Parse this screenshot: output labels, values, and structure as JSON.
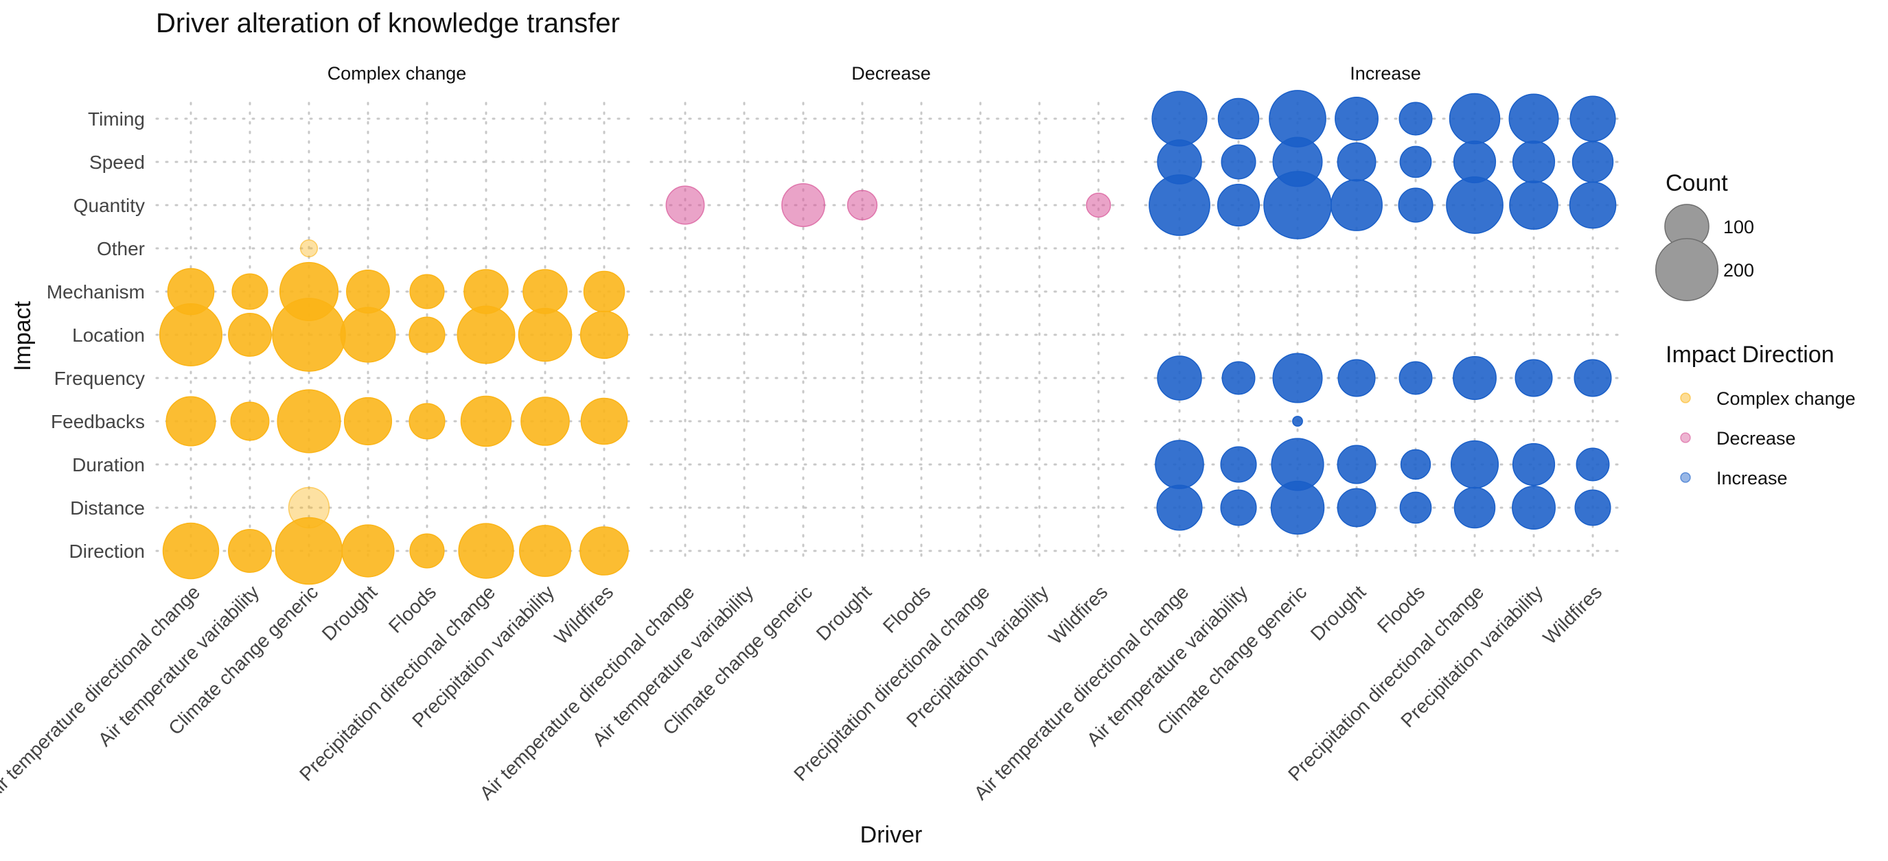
{
  "chart_data": {
    "type": "scatter",
    "title": "Driver alteration of knowledge transfer",
    "xlabel": "Driver",
    "ylabel": "Impact",
    "facets": [
      "Complex change",
      "Decrease",
      "Increase"
    ],
    "drivers": [
      "Air temperature directional change",
      "Air temperature variability",
      "Climate change  generic",
      "Drought",
      "Floods",
      "Precipitation directional change",
      "Precipitation variability",
      "Wildfires"
    ],
    "impacts": [
      "Direction",
      "Distance",
      "Duration",
      "Feedbacks",
      "Frequency",
      "Location",
      "Mechanism",
      "Other",
      "Quantity",
      "Speed",
      "Timing"
    ],
    "colors": {
      "Complex change": "#fbb416",
      "Decrease": "#d8589a",
      "Increase": "#1a5fc8"
    },
    "size_legend": {
      "title": "Count",
      "values": [
        100,
        200
      ]
    },
    "color_legend": {
      "title": "Impact Direction",
      "entries": [
        "Complex change",
        "Decrease",
        "Increase"
      ]
    },
    "grid": true,
    "legend_position": "right",
    "series": [
      {
        "name": "Complex change",
        "points": [
          {
            "driver": "Air temperature directional change",
            "impact": "Mechanism",
            "count": 110
          },
          {
            "driver": "Air temperature directional change",
            "impact": "Location",
            "count": 200
          },
          {
            "driver": "Air temperature directional change",
            "impact": "Feedbacks",
            "count": 125
          },
          {
            "driver": "Air temperature directional change",
            "impact": "Direction",
            "count": 160
          },
          {
            "driver": "Air temperature variability",
            "impact": "Mechanism",
            "count": 65
          },
          {
            "driver": "Air temperature variability",
            "impact": "Location",
            "count": 95
          },
          {
            "driver": "Air temperature variability",
            "impact": "Feedbacks",
            "count": 75
          },
          {
            "driver": "Air temperature variability",
            "impact": "Direction",
            "count": 95
          },
          {
            "driver": "Climate change  generic",
            "impact": "Other",
            "count": 15,
            "faded": true
          },
          {
            "driver": "Climate change  generic",
            "impact": "Mechanism",
            "count": 175
          },
          {
            "driver": "Climate change  generic",
            "impact": "Location",
            "count": 275
          },
          {
            "driver": "Climate change  generic",
            "impact": "Feedbacks",
            "count": 205
          },
          {
            "driver": "Climate change  generic",
            "impact": "Distance",
            "count": 85,
            "faded": true
          },
          {
            "driver": "Climate change  generic",
            "impact": "Direction",
            "count": 230
          },
          {
            "driver": "Drought",
            "impact": "Mechanism",
            "count": 95
          },
          {
            "driver": "Drought",
            "impact": "Location",
            "count": 155
          },
          {
            "driver": "Drought",
            "impact": "Feedbacks",
            "count": 115
          },
          {
            "driver": "Drought",
            "impact": "Direction",
            "count": 140
          },
          {
            "driver": "Floods",
            "impact": "Mechanism",
            "count": 60
          },
          {
            "driver": "Floods",
            "impact": "Location",
            "count": 65
          },
          {
            "driver": "Floods",
            "impact": "Feedbacks",
            "count": 65
          },
          {
            "driver": "Floods",
            "impact": "Direction",
            "count": 60
          },
          {
            "driver": "Precipitation directional change",
            "impact": "Mechanism",
            "count": 100
          },
          {
            "driver": "Precipitation directional change",
            "impact": "Location",
            "count": 170
          },
          {
            "driver": "Precipitation directional change",
            "impact": "Feedbacks",
            "count": 130
          },
          {
            "driver": "Precipitation directional change",
            "impact": "Direction",
            "count": 155
          },
          {
            "driver": "Precipitation variability",
            "impact": "Mechanism",
            "count": 100
          },
          {
            "driver": "Precipitation variability",
            "impact": "Location",
            "count": 145
          },
          {
            "driver": "Precipitation variability",
            "impact": "Feedbacks",
            "count": 120
          },
          {
            "driver": "Precipitation variability",
            "impact": "Direction",
            "count": 135
          },
          {
            "driver": "Wildfires",
            "impact": "Mechanism",
            "count": 85
          },
          {
            "driver": "Wildfires",
            "impact": "Location",
            "count": 115
          },
          {
            "driver": "Wildfires",
            "impact": "Feedbacks",
            "count": 110
          },
          {
            "driver": "Wildfires",
            "impact": "Direction",
            "count": 120
          }
        ]
      },
      {
        "name": "Decrease",
        "points": [
          {
            "driver": "Air temperature directional change",
            "impact": "Quantity",
            "count": 75
          },
          {
            "driver": "Climate change  generic",
            "impact": "Quantity",
            "count": 95
          },
          {
            "driver": "Drought",
            "impact": "Quantity",
            "count": 45
          },
          {
            "driver": "Wildfires",
            "impact": "Quantity",
            "count": 30
          }
        ]
      },
      {
        "name": "Increase",
        "points": [
          {
            "driver": "Air temperature directional change",
            "impact": "Timing",
            "count": 155
          },
          {
            "driver": "Air temperature directional change",
            "impact": "Speed",
            "count": 100
          },
          {
            "driver": "Air temperature directional change",
            "impact": "Quantity",
            "count": 190
          },
          {
            "driver": "Air temperature directional change",
            "impact": "Frequency",
            "count": 100
          },
          {
            "driver": "Air temperature directional change",
            "impact": "Duration",
            "count": 120
          },
          {
            "driver": "Air temperature directional change",
            "impact": "Distance",
            "count": 105
          },
          {
            "driver": "Air temperature variability",
            "impact": "Timing",
            "count": 85
          },
          {
            "driver": "Air temperature variability",
            "impact": "Speed",
            "count": 60
          },
          {
            "driver": "Air temperature variability",
            "impact": "Quantity",
            "count": 90
          },
          {
            "driver": "Air temperature variability",
            "impact": "Frequency",
            "count": 55
          },
          {
            "driver": "Air temperature variability",
            "impact": "Duration",
            "count": 65
          },
          {
            "driver": "Air temperature variability",
            "impact": "Distance",
            "count": 65
          },
          {
            "driver": "Climate change  generic",
            "impact": "Timing",
            "count": 165
          },
          {
            "driver": "Climate change  generic",
            "impact": "Speed",
            "count": 125
          },
          {
            "driver": "Climate change  generic",
            "impact": "Quantity",
            "count": 235
          },
          {
            "driver": "Climate change  generic",
            "impact": "Frequency",
            "count": 125
          },
          {
            "driver": "Climate change  generic",
            "impact": "Feedbacks",
            "count": 5
          },
          {
            "driver": "Climate change  generic",
            "impact": "Duration",
            "count": 140
          },
          {
            "driver": "Climate change  generic",
            "impact": "Distance",
            "count": 145
          },
          {
            "driver": "Drought",
            "impact": "Timing",
            "count": 95
          },
          {
            "driver": "Drought",
            "impact": "Speed",
            "count": 75
          },
          {
            "driver": "Drought",
            "impact": "Quantity",
            "count": 135
          },
          {
            "driver": "Drought",
            "impact": "Frequency",
            "count": 70
          },
          {
            "driver": "Drought",
            "impact": "Duration",
            "count": 75
          },
          {
            "driver": "Drought",
            "impact": "Distance",
            "count": 75
          },
          {
            "driver": "Floods",
            "impact": "Timing",
            "count": 55
          },
          {
            "driver": "Floods",
            "impact": "Speed",
            "count": 50
          },
          {
            "driver": "Floods",
            "impact": "Quantity",
            "count": 60
          },
          {
            "driver": "Floods",
            "impact": "Frequency",
            "count": 55
          },
          {
            "driver": "Floods",
            "impact": "Duration",
            "count": 45
          },
          {
            "driver": "Floods",
            "impact": "Distance",
            "count": 50
          },
          {
            "driver": "Precipitation directional change",
            "impact": "Timing",
            "count": 130
          },
          {
            "driver": "Precipitation directional change",
            "impact": "Speed",
            "count": 90
          },
          {
            "driver": "Precipitation directional change",
            "impact": "Quantity",
            "count": 165
          },
          {
            "driver": "Precipitation directional change",
            "impact": "Frequency",
            "count": 95
          },
          {
            "driver": "Precipitation directional change",
            "impact": "Duration",
            "count": 115
          },
          {
            "driver": "Precipitation directional change",
            "impact": "Distance",
            "count": 85
          },
          {
            "driver": "Precipitation variability",
            "impact": "Timing",
            "count": 125
          },
          {
            "driver": "Precipitation variability",
            "impact": "Speed",
            "count": 90
          },
          {
            "driver": "Precipitation variability",
            "impact": "Quantity",
            "count": 120
          },
          {
            "driver": "Precipitation variability",
            "impact": "Frequency",
            "count": 70
          },
          {
            "driver": "Precipitation variability",
            "impact": "Duration",
            "count": 90
          },
          {
            "driver": "Precipitation variability",
            "impact": "Distance",
            "count": 95
          },
          {
            "driver": "Wildfires",
            "impact": "Timing",
            "count": 105
          },
          {
            "driver": "Wildfires",
            "impact": "Speed",
            "count": 85
          },
          {
            "driver": "Wildfires",
            "impact": "Quantity",
            "count": 110
          },
          {
            "driver": "Wildfires",
            "impact": "Frequency",
            "count": 70
          },
          {
            "driver": "Wildfires",
            "impact": "Duration",
            "count": 55
          },
          {
            "driver": "Wildfires",
            "impact": "Distance",
            "count": 65
          }
        ]
      }
    ]
  }
}
